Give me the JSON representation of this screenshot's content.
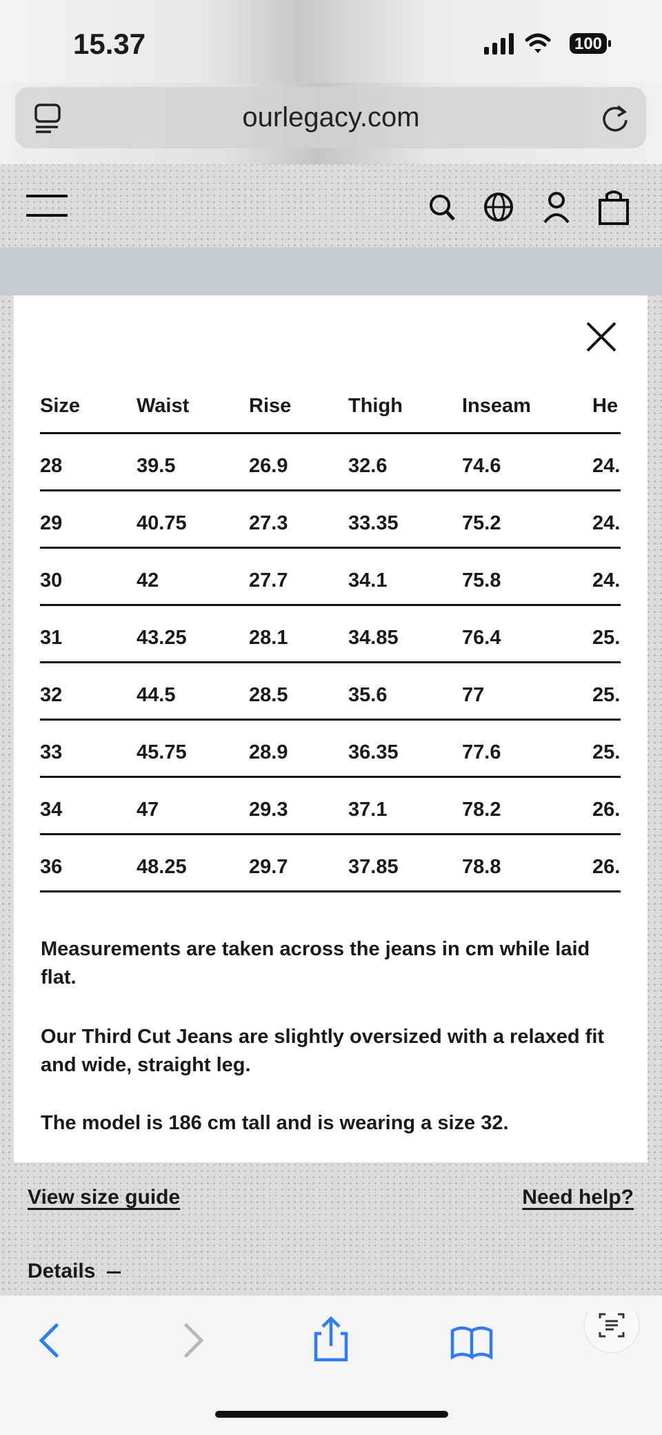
{
  "status_bar": {
    "time": "15.37",
    "battery": "100"
  },
  "browser": {
    "url": "ourlegacy.com"
  },
  "modal": {
    "table": {
      "headers": [
        "Size",
        "Waist",
        "Rise",
        "Thigh",
        "Inseam",
        "He"
      ],
      "rows": [
        [
          "28",
          "39.5",
          "26.9",
          "32.6",
          "74.6",
          "24."
        ],
        [
          "29",
          "40.75",
          "27.3",
          "33.35",
          "75.2",
          "24."
        ],
        [
          "30",
          "42",
          "27.7",
          "34.1",
          "75.8",
          "24."
        ],
        [
          "31",
          "43.25",
          "28.1",
          "34.85",
          "76.4",
          "25."
        ],
        [
          "32",
          "44.5",
          "28.5",
          "35.6",
          "77",
          "25."
        ],
        [
          "33",
          "45.75",
          "28.9",
          "36.35",
          "77.6",
          "25."
        ],
        [
          "34",
          "47",
          "29.3",
          "37.1",
          "78.2",
          "26."
        ],
        [
          "36",
          "48.25",
          "29.7",
          "37.85",
          "78.8",
          "26."
        ]
      ]
    },
    "notes": [
      "Measurements are taken across the jeans in cm while laid flat.",
      "Our Third Cut Jeans are slightly oversized with a relaxed fit and wide, straight leg.",
      "The model is 186 cm tall and is wearing a size 32."
    ]
  },
  "links": {
    "size_guide": "View size guide",
    "help": "Need help?",
    "details": "Details"
  }
}
